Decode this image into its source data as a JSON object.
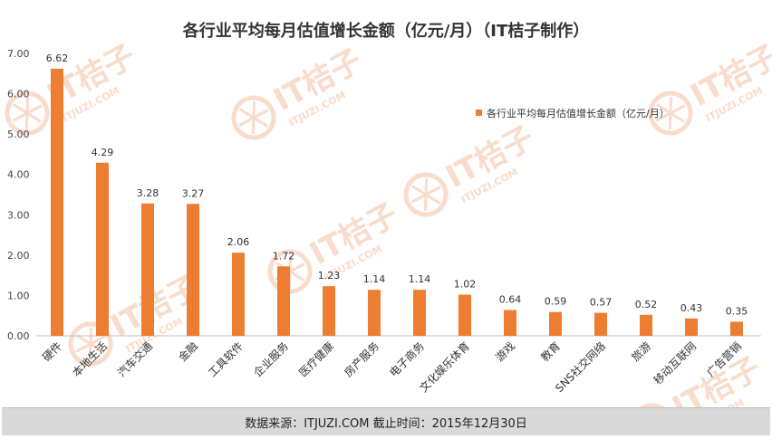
{
  "chart_data": {
    "type": "bar",
    "title": "各行业平均每月估值增长金额（亿元/月）（IT桔子制作）",
    "categories": [
      "硬件",
      "本地生活",
      "汽车交通",
      "金融",
      "工具软件",
      "企业服务",
      "医疗健康",
      "房产服务",
      "电子商务",
      "文化娱乐体育",
      "游戏",
      "教育",
      "SNS社交网络",
      "旅游",
      "移动互联网",
      "广告营销"
    ],
    "series": [
      {
        "name": "各行业平均每月估值增长金额（亿元/月）",
        "values": [
          6.62,
          4.29,
          3.28,
          3.27,
          2.06,
          1.72,
          1.23,
          1.14,
          1.14,
          1.02,
          0.64,
          0.59,
          0.57,
          0.52,
          0.43,
          0.35
        ]
      }
    ],
    "value_labels": [
      "6.62",
      "4.29",
      "3.28",
      "3.27",
      "2.06",
      "1.72",
      "1.23",
      "1.14",
      "1.14",
      "1.02",
      "0.64",
      "0.59",
      "0.57",
      "0.52",
      "0.43",
      "0.35"
    ],
    "y_ticks": [
      "0.00",
      "1.00",
      "2.00",
      "3.00",
      "4.00",
      "5.00",
      "6.00",
      "7.00"
    ],
    "ylim": [
      0,
      7
    ],
    "grid": false,
    "legend_position": "top-right",
    "bar_color": "#ed7d31"
  },
  "watermark": {
    "brand": "IT桔子",
    "domain": "ITJUZI.COM",
    "color": "#f9dccb"
  },
  "footer": {
    "text": "数据来源：ITJUZI.COM   截止时间：2015年12月30日"
  }
}
